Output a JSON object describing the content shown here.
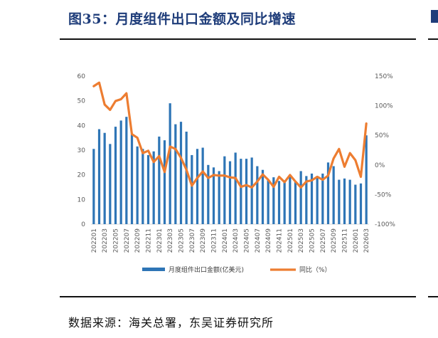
{
  "header": {
    "title": "图35：月度组件出口金额及同比增速"
  },
  "footer": {
    "source": "数据来源：海关总署，东吴证券研究所"
  },
  "colors": {
    "bar": "#2e75b6",
    "line": "#ed7d31",
    "title": "#1f3d7a"
  },
  "chart_data": {
    "type": "bar",
    "title": "",
    "xlabel": "",
    "ylabel": "",
    "grid": false,
    "legend_position": "bottom",
    "ylim": [
      0,
      60
    ],
    "y_ticks": [
      0,
      10,
      20,
      30,
      40,
      50,
      60
    ],
    "y2lim": [
      -100,
      150
    ],
    "y2_ticks": [
      "-100%",
      "-50%",
      "0%",
      "50%",
      "100%",
      "150%"
    ],
    "x_tick_labels": [
      "202201",
      "202203",
      "202205",
      "202207",
      "202209",
      "202211",
      "202301",
      "202303",
      "202305",
      "202307",
      "202309",
      "202311",
      "202401",
      "202403",
      "202405",
      "202407",
      "202409",
      "202411",
      "202501",
      "202503",
      "202505",
      "202507",
      "202509",
      "202511",
      "202601",
      "202603"
    ],
    "categories": [
      "202201",
      "202202",
      "202203",
      "202204",
      "202205",
      "202206",
      "202207",
      "202208",
      "202209",
      "202210",
      "202211",
      "202212",
      "202301",
      "202302",
      "202303",
      "202304",
      "202305",
      "202306",
      "202307",
      "202308",
      "202309",
      "202310",
      "202311",
      "202312",
      "202401",
      "202402",
      "202403",
      "202404",
      "202405",
      "202406",
      "202407",
      "202408",
      "202409",
      "202410",
      "202411",
      "202412",
      "202501",
      "202502",
      "202503",
      "202504",
      "202505",
      "202506",
      "202507",
      "202508",
      "202509",
      "202510",
      "202511",
      "202512",
      "202601",
      "202602",
      "202603"
    ],
    "series": [
      {
        "name": "月度组件出口金额(亿美元)",
        "type": "bar",
        "axis": "left",
        "values": [
          30.5,
          38.5,
          37.0,
          32.5,
          39.5,
          42.0,
          43.5,
          36.5,
          31.5,
          30.5,
          28.0,
          29.5,
          35.5,
          34.0,
          49.0,
          40.5,
          41.5,
          37.5,
          28.0,
          30.5,
          31.0,
          24.0,
          23.0,
          21.5,
          27.5,
          25.5,
          29.0,
          26.5,
          26.5,
          27.0,
          23.5,
          22.0,
          18.0,
          19.0,
          17.5,
          17.5,
          20.0,
          17.0,
          21.5,
          19.5,
          20.5,
          19.5,
          20.5,
          25.0,
          23.5,
          18.0,
          18.5,
          18.0,
          16.0,
          16.5,
          36.0
        ]
      },
      {
        "name": "同比（%）",
        "type": "line",
        "axis": "right",
        "values": [
          133,
          139,
          102,
          93,
          108,
          111,
          121,
          52,
          46,
          20,
          24,
          5,
          15,
          -12,
          31,
          27,
          12,
          -8,
          -35,
          -22,
          -11,
          -22,
          -17,
          -18,
          -18,
          -21,
          -22,
          -37,
          -34,
          -38,
          -28,
          -16,
          -25,
          -37,
          -20,
          -29,
          -17,
          -28,
          -38,
          -28,
          -26,
          -20,
          -25,
          -18,
          11,
          27,
          -3,
          20,
          8,
          -20,
          70
        ]
      }
    ]
  }
}
